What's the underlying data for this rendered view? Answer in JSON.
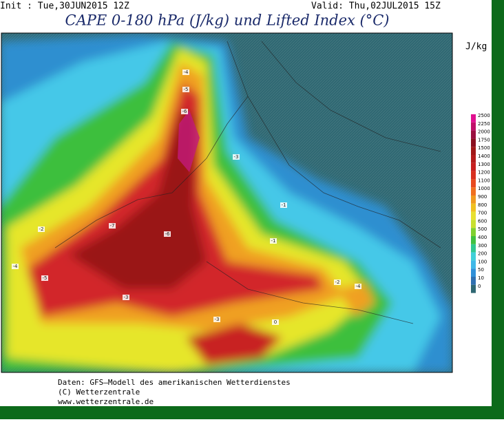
{
  "header": {
    "init": "Init : Tue,30JUN2015 12Z",
    "valid": "Valid: Thu,02JUL2015 15Z",
    "title": "CAPE 0-180 hPa (J/kg) und Lifted Index (°C)"
  },
  "legend": {
    "unit": "J/kg",
    "levels": [
      {
        "label": "2500",
        "color": "#e01090"
      },
      {
        "label": "2250",
        "color": "#c0106a"
      },
      {
        "label": "2000",
        "color": "#9a1040"
      },
      {
        "label": "1750",
        "color": "#8a1020"
      },
      {
        "label": "1500",
        "color": "#a01818"
      },
      {
        "label": "1400",
        "color": "#b41c1c"
      },
      {
        "label": "1300",
        "color": "#c82020"
      },
      {
        "label": "1200",
        "color": "#d83020"
      },
      {
        "label": "1100",
        "color": "#e84a20"
      },
      {
        "label": "1000",
        "color": "#f07020"
      },
      {
        "label": "900",
        "color": "#f09a20"
      },
      {
        "label": "800",
        "color": "#f0c020"
      },
      {
        "label": "700",
        "color": "#e8e030"
      },
      {
        "label": "600",
        "color": "#c8e030"
      },
      {
        "label": "500",
        "color": "#80d030"
      },
      {
        "label": "400",
        "color": "#40c040"
      },
      {
        "label": "300",
        "color": "#30c890"
      },
      {
        "label": "200",
        "color": "#40d0d8"
      },
      {
        "label": "100",
        "color": "#40b8e8"
      },
      {
        "label": "50",
        "color": "#3090d8"
      },
      {
        "label": "10",
        "color": "#3070b0"
      },
      {
        "label": "0",
        "color": "#2f6873"
      }
    ]
  },
  "map_labels": [
    "-4",
    "-5",
    "-6",
    "-3",
    "-7",
    "-2",
    "-1",
    "-4",
    "-5",
    "-6",
    "-3",
    "-1",
    "-2",
    "0",
    "-3",
    "-4"
  ],
  "footer": [
    "Daten: GFS–Modell des amerikanischen Wetterdienstes",
    "(C) Wetterzentrale",
    "www.wetterzentrale.de"
  ]
}
